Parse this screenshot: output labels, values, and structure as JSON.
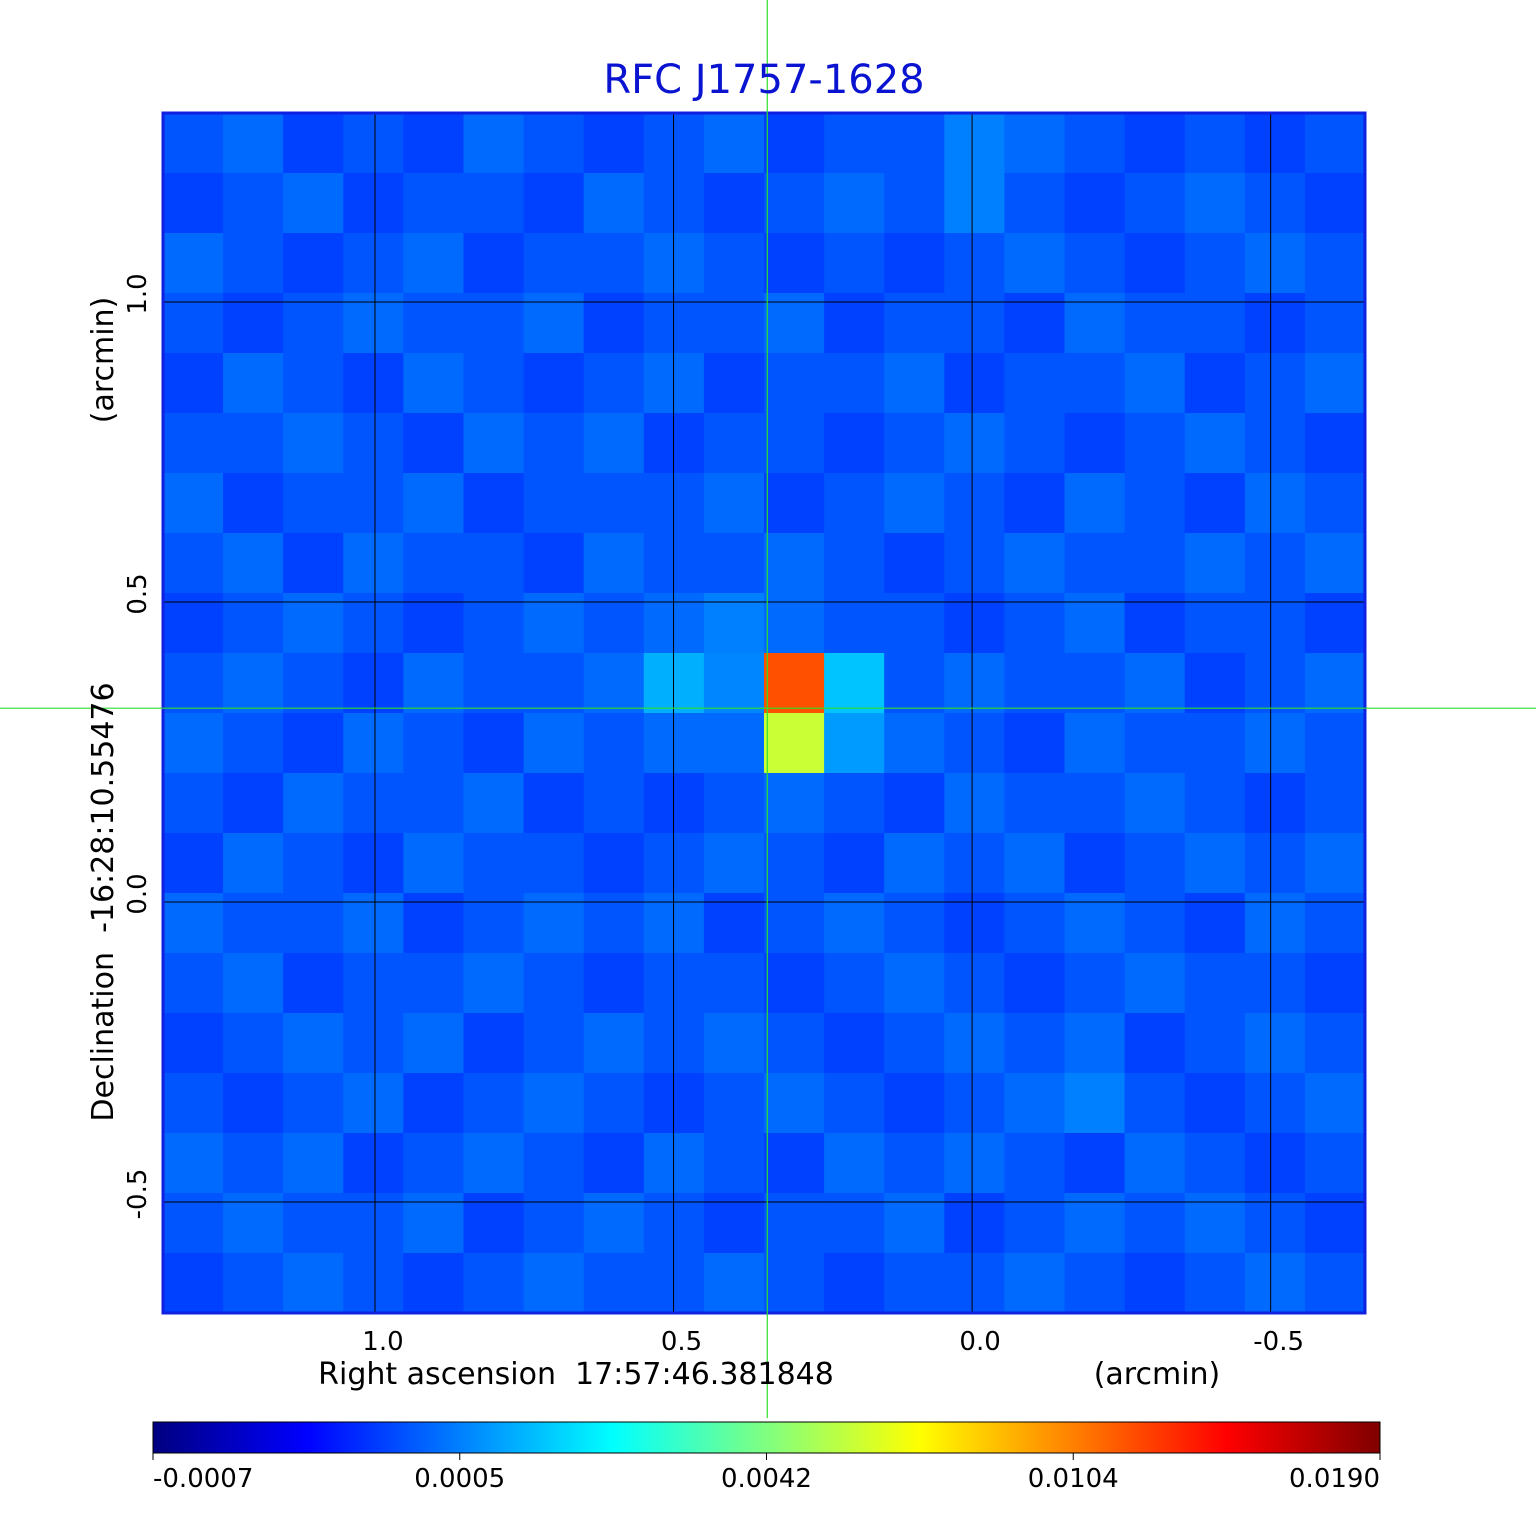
{
  "chart_data": {
    "type": "heatmap",
    "title": "RFC J1757-1628",
    "x_label": "Right ascension  17:57:46.381848",
    "x_unit": "(arcmin)",
    "y_label": "Declination  -16:28:10.55476",
    "y_unit": "(arcmin)",
    "xlim": [
      1.355,
      -0.658
    ],
    "ylim": [
      -0.685,
      1.315
    ],
    "xticks": [
      {
        "value": 1.0,
        "label": "1.0"
      },
      0.5,
      {
        "value": 0.0,
        "label": "0.0"
      },
      -0.5
    ],
    "yticks": [
      {
        "value": 1.0,
        "label": "1.0"
      },
      0.5,
      {
        "value": 0.0,
        "label": "0.0"
      },
      -0.5
    ],
    "grid": true,
    "crosshair": [
      0.343,
      0.323
    ],
    "colormap": "jet",
    "colorbar_ticks": [
      -0.0007,
      0.0005,
      0.0042,
      0.0104,
      {
        "value": 0.019,
        "label": "0.0190"
      }
    ],
    "z": [
      [
        0.0003,
        0.0004,
        0.0002,
        0.0003,
        0.0002,
        0.0004,
        0.0003,
        0.0002,
        0.0003,
        0.0004,
        0.0002,
        0.0003,
        0.0003,
        0.0005,
        0.0004,
        0.0003,
        0.0002,
        0.0003,
        0.0002,
        0.0003
      ],
      [
        0.0002,
        0.0003,
        0.0004,
        0.0002,
        0.0003,
        0.0003,
        0.0002,
        0.0004,
        0.0003,
        0.0002,
        0.0003,
        0.0004,
        0.0003,
        0.0005,
        0.0003,
        0.0002,
        0.0003,
        0.0004,
        0.0003,
        0.0002
      ],
      [
        0.0004,
        0.0003,
        0.0002,
        0.0003,
        0.0004,
        0.0002,
        0.0003,
        0.0003,
        0.0004,
        0.0003,
        0.0002,
        0.0003,
        0.0002,
        0.0003,
        0.0004,
        0.0003,
        0.0002,
        0.0003,
        0.0004,
        0.0003
      ],
      [
        0.0003,
        0.0002,
        0.0003,
        0.0004,
        0.0003,
        0.0003,
        0.0004,
        0.0002,
        0.0003,
        0.0003,
        0.0004,
        0.0002,
        0.0003,
        0.0003,
        0.0002,
        0.0004,
        0.0003,
        0.0003,
        0.0002,
        0.0003
      ],
      [
        0.0002,
        0.0004,
        0.0003,
        0.0002,
        0.0004,
        0.0003,
        0.0002,
        0.0003,
        0.0004,
        0.0002,
        0.0003,
        0.0003,
        0.0004,
        0.0002,
        0.0003,
        0.0003,
        0.0004,
        0.0002,
        0.0003,
        0.0004
      ],
      [
        0.0003,
        0.0003,
        0.0004,
        0.0003,
        0.0002,
        0.0004,
        0.0003,
        0.0004,
        0.0002,
        0.0003,
        0.0003,
        0.0002,
        0.0003,
        0.0004,
        0.0003,
        0.0002,
        0.0003,
        0.0004,
        0.0003,
        0.0002
      ],
      [
        0.0004,
        0.0002,
        0.0003,
        0.0003,
        0.0004,
        0.0002,
        0.0003,
        0.0003,
        0.0003,
        0.0004,
        0.0002,
        0.0003,
        0.0004,
        0.0003,
        0.0002,
        0.0004,
        0.0003,
        0.0002,
        0.0004,
        0.0003
      ],
      [
        0.0003,
        0.0004,
        0.0002,
        0.0004,
        0.0003,
        0.0003,
        0.0002,
        0.0004,
        0.0003,
        0.0003,
        0.0004,
        0.0003,
        0.0002,
        0.0003,
        0.0004,
        0.0003,
        0.0003,
        0.0004,
        0.0003,
        0.0004
      ],
      [
        0.0002,
        0.0003,
        0.0004,
        0.0003,
        0.0002,
        0.0003,
        0.0004,
        0.0003,
        0.0004,
        0.0005,
        0.0004,
        0.0003,
        0.0003,
        0.0002,
        0.0003,
        0.0004,
        0.0002,
        0.0003,
        0.0003,
        0.0002
      ],
      [
        0.0003,
        0.0004,
        0.0003,
        0.0002,
        0.0004,
        0.0003,
        0.0003,
        0.0004,
        0.0012,
        0.0006,
        0.012,
        0.0015,
        0.0003,
        0.0004,
        0.0003,
        0.0003,
        0.0004,
        0.0002,
        0.0003,
        0.0004
      ],
      [
        0.0004,
        0.0003,
        0.0002,
        0.0004,
        0.0003,
        0.0002,
        0.0004,
        0.0003,
        0.0004,
        0.0004,
        0.006,
        0.0009,
        0.0004,
        0.0003,
        0.0002,
        0.0004,
        0.0003,
        0.0003,
        0.0004,
        0.0003
      ],
      [
        0.0003,
        0.0002,
        0.0004,
        0.0003,
        0.0003,
        0.0004,
        0.0002,
        0.0003,
        0.0002,
        0.0003,
        0.0004,
        0.0003,
        0.0002,
        0.0004,
        0.0003,
        0.0003,
        0.0004,
        0.0003,
        0.0002,
        0.0003
      ],
      [
        0.0002,
        0.0004,
        0.0003,
        0.0002,
        0.0004,
        0.0003,
        0.0003,
        0.0002,
        0.0003,
        0.0004,
        0.0003,
        0.0002,
        0.0004,
        0.0003,
        0.0004,
        0.0002,
        0.0003,
        0.0004,
        0.0003,
        0.0004
      ],
      [
        0.0004,
        0.0003,
        0.0003,
        0.0004,
        0.0002,
        0.0003,
        0.0004,
        0.0003,
        0.0004,
        0.0002,
        0.0003,
        0.0004,
        0.0003,
        0.0002,
        0.0003,
        0.0004,
        0.0003,
        0.0002,
        0.0004,
        0.0003
      ],
      [
        0.0003,
        0.0004,
        0.0002,
        0.0003,
        0.0003,
        0.0004,
        0.0003,
        0.0002,
        0.0003,
        0.0003,
        0.0002,
        0.0003,
        0.0004,
        0.0003,
        0.0002,
        0.0003,
        0.0004,
        0.0003,
        0.0003,
        0.0002
      ],
      [
        0.0002,
        0.0003,
        0.0004,
        0.0003,
        0.0004,
        0.0002,
        0.0003,
        0.0004,
        0.0003,
        0.0004,
        0.0003,
        0.0002,
        0.0003,
        0.0004,
        0.0003,
        0.0004,
        0.0002,
        0.0003,
        0.0004,
        0.0003
      ],
      [
        0.0003,
        0.0002,
        0.0003,
        0.0004,
        0.0002,
        0.0003,
        0.0004,
        0.0003,
        0.0002,
        0.0003,
        0.0004,
        0.0003,
        0.0002,
        0.0003,
        0.0004,
        0.0005,
        0.0003,
        0.0002,
        0.0003,
        0.0004
      ],
      [
        0.0004,
        0.0003,
        0.0004,
        0.0002,
        0.0003,
        0.0004,
        0.0003,
        0.0002,
        0.0004,
        0.0003,
        0.0002,
        0.0004,
        0.0003,
        0.0004,
        0.0003,
        0.0002,
        0.0004,
        0.0003,
        0.0002,
        0.0003
      ],
      [
        0.0003,
        0.0004,
        0.0003,
        0.0003,
        0.0004,
        0.0002,
        0.0003,
        0.0004,
        0.0003,
        0.0002,
        0.0003,
        0.0003,
        0.0004,
        0.0002,
        0.0003,
        0.0004,
        0.0003,
        0.0004,
        0.0003,
        0.0002
      ],
      [
        0.0002,
        0.0003,
        0.0004,
        0.0003,
        0.0002,
        0.0003,
        0.0004,
        0.0003,
        0.0003,
        0.0004,
        0.0003,
        0.0002,
        0.0003,
        0.0003,
        0.0004,
        0.0003,
        0.0002,
        0.0003,
        0.0004,
        0.0003
      ]
    ]
  }
}
